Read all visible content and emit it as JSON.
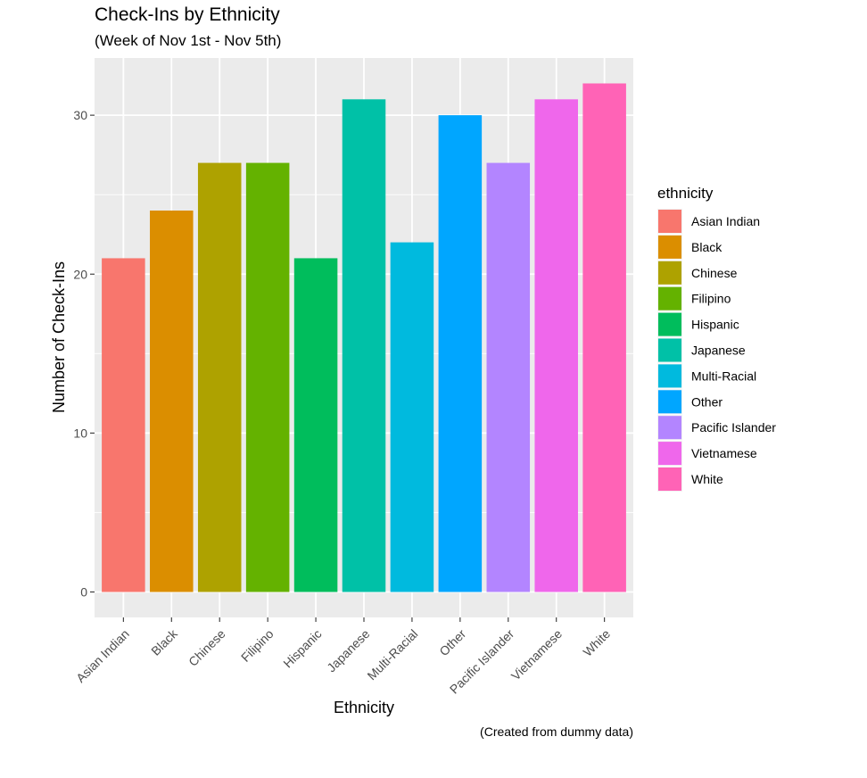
{
  "chart_data": {
    "type": "bar",
    "title": "Check-Ins by Ethnicity",
    "subtitle": "(Week of Nov 1st - Nov 5th)",
    "xlabel": "Ethnicity",
    "ylabel": "Number of Check-Ins",
    "caption": "(Created from dummy data)",
    "categories": [
      "Asian Indian",
      "Black",
      "Chinese",
      "Filipino",
      "Hispanic",
      "Japanese",
      "Multi-Racial",
      "Other",
      "Pacific Islander",
      "Vietnamese",
      "White"
    ],
    "values": [
      21,
      24,
      27,
      27,
      21,
      31,
      22,
      30,
      27,
      31,
      32
    ],
    "colors": [
      "#F8766D",
      "#DB8E00",
      "#AEA200",
      "#64B200",
      "#00BD5C",
      "#00C1A7",
      "#00BADE",
      "#00A6FF",
      "#B385FF",
      "#EF67EB",
      "#FF63B6"
    ],
    "ylim": [
      -1.6,
      33.6
    ],
    "yticks": [
      0,
      10,
      20,
      30
    ],
    "ytick_labels": [
      "0",
      "10",
      "20",
      "30"
    ],
    "grid": true,
    "panel_background": "#EBEBEB",
    "grid_color": "#FFFFFF",
    "legend": {
      "title": "ethnicity",
      "position": "right",
      "items": [
        "Asian Indian",
        "Black",
        "Chinese",
        "Filipino",
        "Hispanic",
        "Japanese",
        "Multi-Racial",
        "Other",
        "Pacific Islander",
        "Vietnamese",
        "White"
      ]
    }
  }
}
